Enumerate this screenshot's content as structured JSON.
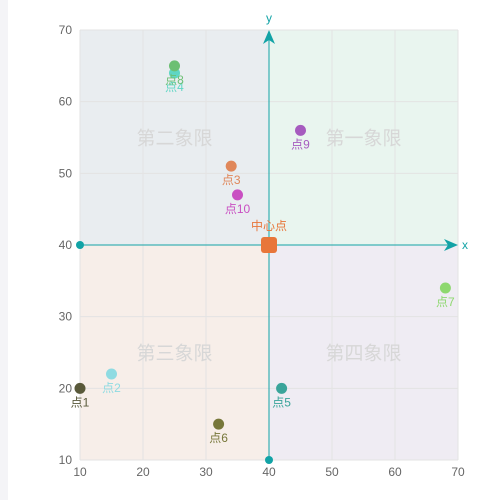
{
  "chart_data": {
    "type": "scatter",
    "xlim": [
      10,
      70
    ],
    "ylim": [
      10,
      70
    ],
    "x_ticks": [
      10,
      20,
      30,
      40,
      50,
      60,
      70
    ],
    "y_ticks": [
      10,
      20,
      30,
      40,
      50,
      60,
      70
    ],
    "grid": true,
    "center": {
      "x": 40,
      "y": 40,
      "label": "中心点",
      "color": "#e8763a"
    },
    "axes": {
      "x_label": "x",
      "y_label": "y",
      "color": "#12a3a6"
    },
    "quadrants": [
      {
        "label": "第一象限",
        "color": "#e9f5ef"
      },
      {
        "label": "第二象限",
        "color": "#e9edf0"
      },
      {
        "label": "第三象限",
        "color": "#f7eee9"
      },
      {
        "label": "第四象限",
        "color": "#efecf3"
      }
    ],
    "points": [
      {
        "label": "点1",
        "x": 10,
        "y": 20,
        "color": "#59593a"
      },
      {
        "label": "点2",
        "x": 15,
        "y": 22,
        "color": "#8fdbe2"
      },
      {
        "label": "点3",
        "x": 34,
        "y": 51,
        "color": "#e0875a"
      },
      {
        "label": "点4",
        "x": 25,
        "y": 64,
        "color": "#5fd6c4"
      },
      {
        "label": "点5",
        "x": 42,
        "y": 20,
        "color": "#3aa49a"
      },
      {
        "label": "点6",
        "x": 32,
        "y": 15,
        "color": "#77773a"
      },
      {
        "label": "点7",
        "x": 68,
        "y": 34,
        "color": "#8ed86f"
      },
      {
        "label": "点8",
        "x": 25,
        "y": 65,
        "color": "#6cbf73"
      },
      {
        "label": "点9",
        "x": 45,
        "y": 56,
        "color": "#a65bbf"
      },
      {
        "label": "点10",
        "x": 35,
        "y": 47,
        "color": "#c94fc2"
      }
    ]
  }
}
